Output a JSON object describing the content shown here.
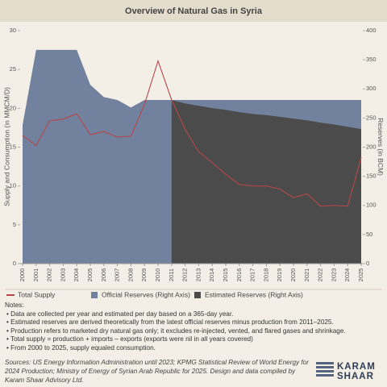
{
  "chart_data": {
    "type": "line",
    "title": "Overview of Natural Gas in Syria",
    "y_label": "Supply and Consumption (in MMCM/D)",
    "y2_label": "Reserves (in BCM)",
    "categories": [
      "2000",
      "2001",
      "2002",
      "2003",
      "2004",
      "2005",
      "2006",
      "2007",
      "2008",
      "2009",
      "2010",
      "2011",
      "2012",
      "2013",
      "2014",
      "2015",
      "2016",
      "2017",
      "2018",
      "2019",
      "2020",
      "2021",
      "2022",
      "2023",
      "2024",
      "2025"
    ],
    "ylim": [
      0,
      30
    ],
    "yticks": [
      0,
      5,
      10,
      15,
      20,
      25,
      30
    ],
    "y2lim": [
      0,
      400
    ],
    "y2ticks": [
      0,
      50,
      100,
      150,
      200,
      250,
      300,
      350,
      400
    ],
    "series": [
      {
        "name": "Total Supply",
        "kind": "line",
        "color": "#b5474a",
        "values": [
          16.5,
          15.2,
          18.4,
          18.6,
          19.3,
          16.6,
          17.0,
          16.3,
          16.4,
          20.5,
          26.1,
          21.1,
          17.3,
          14.4,
          13.0,
          11.5,
          10.2,
          10.0,
          10.0,
          9.6,
          8.5,
          9.0,
          7.4,
          7.5,
          7.4,
          13.7
        ]
      },
      {
        "name": "Official Reserves (Right Axis)",
        "kind": "area",
        "axis": "y2",
        "color": "#72819d",
        "values": [
          238,
          367,
          367,
          367,
          367,
          307,
          286,
          281,
          268,
          281,
          281,
          281,
          281,
          281,
          281,
          281,
          281,
          281,
          281,
          281,
          281,
          281,
          281,
          281,
          281,
          281
        ]
      },
      {
        "name": "Estimated Reserves (Right Axis)",
        "kind": "area",
        "axis": "y2",
        "color": "#4b4b4b",
        "values": [
          null,
          null,
          null,
          null,
          null,
          null,
          null,
          null,
          null,
          null,
          null,
          281,
          275,
          271,
          267,
          264,
          260,
          257,
          255,
          252,
          249,
          246,
          242,
          239,
          235,
          231
        ]
      }
    ],
    "notes_title": "Notes:",
    "notes": [
      "• Data are collected per year and estimated per day based on a 365-day year.",
      "• Estimated reserves are derived theoretically from the latest official reserves minus production from 2011–2025.",
      "• Production refers to marketed dry natural gas only; it excludes re-injected, vented, and flared gases and shrinkage.",
      "• Total supply = production + imports – exports (exports were nil in all years covered)",
      "• From 2000 to 2025, supply equaled consumption."
    ],
    "sources": "Sources: US Energy Information Administration until 2023; KPMG Statistical Review of World Energy for 2024 Production; Ministry of Energy of Syrian Arab Republic for 2025. Design and data compiled by Karam Shaar Advisory Ltd.",
    "logo": "KARAM SHAAR"
  }
}
